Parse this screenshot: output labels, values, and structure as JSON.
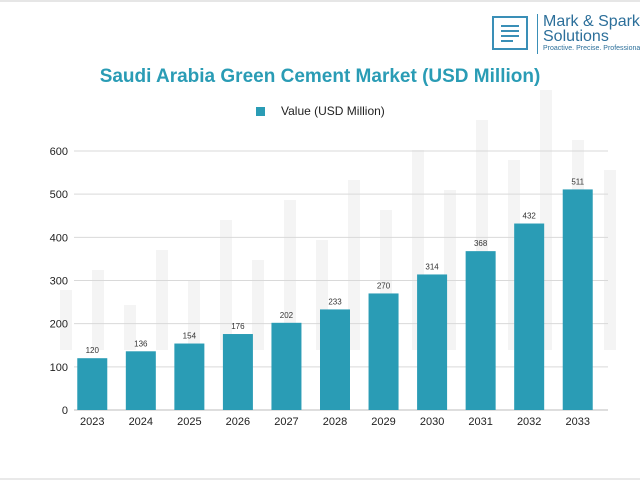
{
  "brand": {
    "name_line1": "Mark & Spark",
    "name_line2": "Solutions",
    "tagline": "Proactive. Precise. Professional",
    "color": "#3a8fb7"
  },
  "chart_data": {
    "type": "bar",
    "title": "Saudi Arabia Green Cement Market (USD Million)",
    "xlabel": "",
    "ylabel": "",
    "categories": [
      "2023",
      "2024",
      "2025",
      "2026",
      "2027",
      "2028",
      "2029",
      "2030",
      "2031",
      "2032",
      "2033"
    ],
    "series": [
      {
        "name": "Value (USD Million)",
        "values": [
          120,
          136,
          154,
          176,
          202,
          233,
          270,
          314,
          368,
          432,
          511
        ],
        "color": "#2a9cb5"
      }
    ],
    "ylim": [
      0,
      600
    ],
    "yticks": [
      0,
      100,
      200,
      300,
      400,
      500,
      600
    ],
    "ytick_labels": [
      "0",
      "100",
      "200",
      "300",
      "400",
      "500",
      "600"
    ],
    "grid": true,
    "legend_position": "top-center",
    "data_labels": true
  }
}
